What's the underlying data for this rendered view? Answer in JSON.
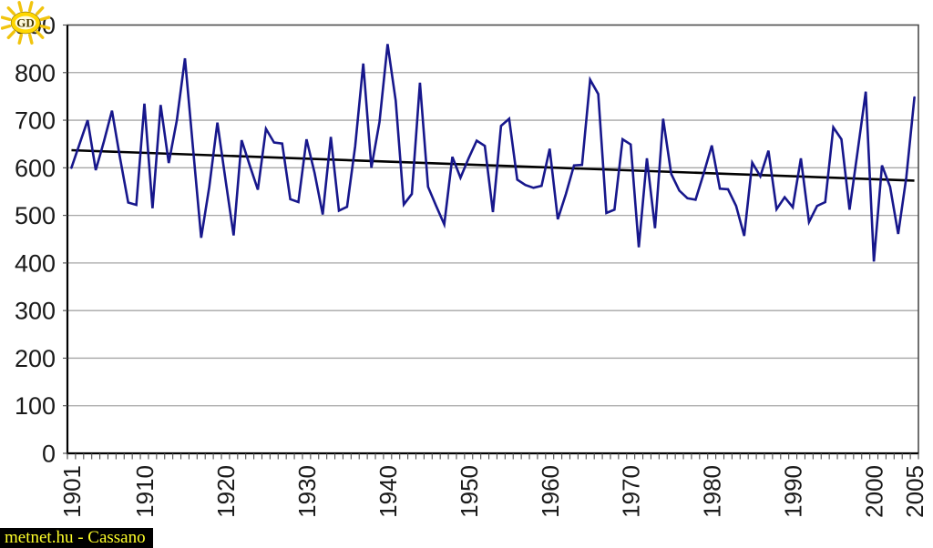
{
  "page": {
    "background_color": "#ffffff"
  },
  "watermark": {
    "text": "metnet.hu - Cassano",
    "text_color": "#ffff2a",
    "bg_color": "#000000"
  },
  "logo": {
    "kind": "sun-logo",
    "letters": "GD",
    "ray_color": "#f1c40f",
    "ring_color": "#ffd700",
    "ring_edge_color": "#8a6d00",
    "center_color": "#fffbe0",
    "letter_color": "#4a3b00"
  },
  "chart_data": {
    "type": "line",
    "title": "",
    "xlabel": "",
    "ylabel": "",
    "x_start_year": 1901,
    "x_end_year": 2005,
    "ylim": [
      0,
      900
    ],
    "ytick_step": 100,
    "grid": true,
    "gridline_color": "#a6a6a6",
    "frame_color": "#4d4d4d",
    "axis_color": "#000000",
    "label_color": "#1a1a1a",
    "yticks": [
      "0",
      "100",
      "200",
      "300",
      "400",
      "500",
      "600",
      "700",
      "800",
      "900"
    ],
    "xticks_labeled": [
      1901,
      1910,
      1920,
      1930,
      1940,
      1950,
      1960,
      1970,
      1980,
      1990,
      2000,
      2005
    ],
    "series": [
      {
        "name": "annual-value",
        "color": "#17178c",
        "width": 2.6,
        "values": [
          600,
          650,
          700,
          595,
          655,
          720,
          620,
          527,
          522,
          735,
          515,
          732,
          610,
          700,
          830,
          640,
          453,
          560,
          695,
          575,
          458,
          658,
          605,
          554,
          682,
          653,
          651,
          534,
          528,
          660,
          589,
          502,
          665,
          510,
          518,
          645,
          819,
          600,
          696,
          860,
          741,
          523,
          545,
          779,
          560,
          520,
          481,
          623,
          579,
          620,
          657,
          646,
          507,
          688,
          703,
          575,
          564,
          558,
          562,
          640,
          492,
          545,
          605,
          606,
          785,
          755,
          505,
          512,
          660,
          649,
          433,
          620,
          473,
          703,
          587,
          552,
          536,
          533,
          588,
          647,
          556,
          555,
          520,
          457,
          611,
          582,
          636,
          513,
          538,
          517,
          620,
          486,
          520,
          528,
          685,
          660,
          512,
          635,
          760,
          403,
          605,
          560,
          461,
          580,
          748
        ]
      }
    ],
    "trend": {
      "name": "linear-trend",
      "color": "#000000",
      "width": 2.6,
      "start_value": 637,
      "end_value": 573
    }
  }
}
